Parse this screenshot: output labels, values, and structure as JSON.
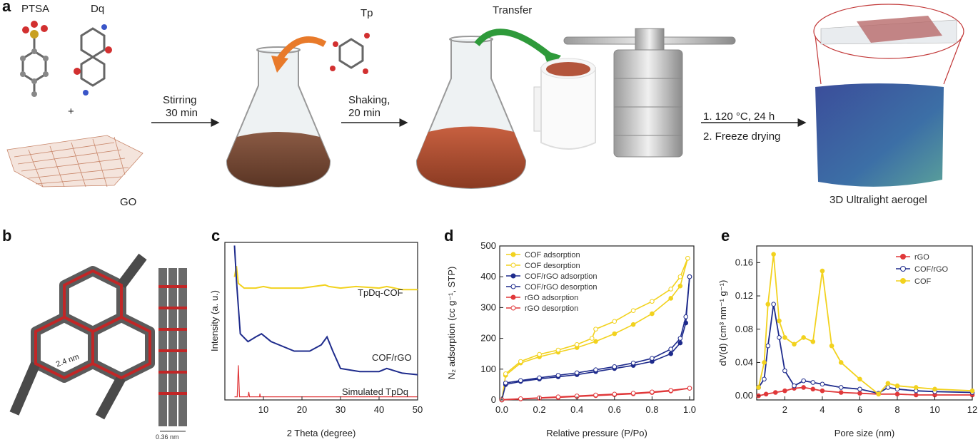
{
  "panel_a": {
    "label": "a",
    "ptsa": "PTSA",
    "dq": "Dq",
    "plus": "+",
    "go": "GO",
    "tp": "Tp",
    "transfer": "Transfer",
    "step1": [
      "Stirring",
      "30 min"
    ],
    "step2": [
      "Shaking,",
      "20 min"
    ],
    "step3": [
      "1. 120 °C, 24 h",
      "2. Freeze drying"
    ],
    "aerogel": "3D Ultralight aerogel"
  },
  "panel_b": {
    "label": "b",
    "pore": "2.4 nm",
    "spacing": "0.36 nm"
  },
  "colors": {
    "yellow": "#f2d21e",
    "navy": "#1e2b8c",
    "red": "#e0383a",
    "orange": "#e87a2a",
    "green": "#2e9a3a"
  },
  "chart_data": [
    {
      "label": "c",
      "type": "line",
      "xlabel": "2 Theta (degree)",
      "ylabel": "Intensity (a. u.)",
      "xlim": [
        0,
        50
      ],
      "xticks": [
        "10",
        "20",
        "30",
        "40",
        "50"
      ],
      "series": [
        {
          "name": "TpDq-COF",
          "x": [
            2.5,
            3,
            3.5,
            5,
            8,
            10,
            12,
            20,
            26,
            27,
            30,
            34,
            40,
            42,
            46,
            50
          ],
          "y": [
            0.78,
            0.85,
            0.74,
            0.71,
            0.71,
            0.72,
            0.71,
            0.71,
            0.73,
            0.72,
            0.71,
            0.72,
            0.71,
            0.72,
            0.7,
            0.7
          ]
        },
        {
          "name": "COF/rGO",
          "x": [
            2.5,
            3,
            4,
            6,
            8,
            9.5,
            12,
            18,
            22,
            25,
            26.5,
            28,
            30,
            35,
            40,
            42,
            46,
            50
          ],
          "y": [
            0.98,
            0.76,
            0.42,
            0.37,
            0.4,
            0.42,
            0.37,
            0.31,
            0.31,
            0.35,
            0.4,
            0.31,
            0.2,
            0.18,
            0.18,
            0.2,
            0.17,
            0.16
          ]
        },
        {
          "name": "Simulated TpDq",
          "x": [
            2.5,
            3.2,
            3.5,
            3.8,
            6,
            6.2,
            6.4,
            9,
            9.1,
            9.2,
            26,
            50
          ],
          "y": [
            0.02,
            0.02,
            0.22,
            0.02,
            0.02,
            0.05,
            0.02,
            0.02,
            0.04,
            0.02,
            0.02,
            0.02
          ]
        }
      ]
    },
    {
      "label": "d",
      "type": "line",
      "xlabel": "Relative pressure (P/Po)",
      "ylabel": "N₂ adsorption (cc g⁻¹, STP)",
      "xlim": [
        0,
        1
      ],
      "ylim": [
        0,
        500
      ],
      "xticks": [
        "0.0",
        "0.2",
        "0.4",
        "0.6",
        "0.8",
        "1.0"
      ],
      "yticks": [
        "0",
        "100",
        "200",
        "300",
        "400",
        "500"
      ],
      "series": [
        {
          "name": "COF adsorption",
          "x": [
            0,
            0.02,
            0.1,
            0.2,
            0.3,
            0.4,
            0.5,
            0.6,
            0.7,
            0.8,
            0.9,
            0.95,
            0.99
          ],
          "y": [
            0,
            80,
            120,
            140,
            155,
            170,
            190,
            215,
            245,
            280,
            330,
            370,
            460
          ]
        },
        {
          "name": "COF desorption",
          "x": [
            0.99,
            0.95,
            0.9,
            0.8,
            0.7,
            0.6,
            0.5,
            0.48,
            0.4,
            0.3,
            0.2,
            0.1,
            0.02
          ],
          "y": [
            460,
            400,
            360,
            320,
            290,
            255,
            230,
            200,
            180,
            162,
            148,
            125,
            85
          ]
        },
        {
          "name": "COF/rGO adsorption",
          "x": [
            0,
            0.02,
            0.1,
            0.2,
            0.3,
            0.4,
            0.5,
            0.6,
            0.7,
            0.8,
            0.9,
            0.95,
            0.98,
            1.0
          ],
          "y": [
            0,
            50,
            60,
            68,
            75,
            82,
            92,
            102,
            112,
            125,
            150,
            185,
            250,
            400
          ]
        },
        {
          "name": "COF/rGO desorption",
          "x": [
            1.0,
            0.98,
            0.95,
            0.9,
            0.8,
            0.7,
            0.6,
            0.5,
            0.4,
            0.3,
            0.2,
            0.1,
            0.02
          ],
          "y": [
            400,
            270,
            200,
            165,
            135,
            120,
            108,
            98,
            88,
            80,
            72,
            63,
            55
          ]
        },
        {
          "name": "rGO adsorption",
          "x": [
            0,
            0.1,
            0.2,
            0.3,
            0.4,
            0.5,
            0.6,
            0.7,
            0.8,
            0.9,
            1.0
          ],
          "y": [
            0,
            3,
            6,
            8,
            11,
            14,
            17,
            20,
            24,
            29,
            38
          ]
        },
        {
          "name": "rGO desorption",
          "x": [
            1.0,
            0.9,
            0.8,
            0.7,
            0.6,
            0.5,
            0.4,
            0.3,
            0.2,
            0.1,
            0.0
          ],
          "y": [
            38,
            31,
            26,
            22,
            19,
            16,
            13,
            10,
            7,
            4,
            1
          ]
        }
      ]
    },
    {
      "label": "e",
      "type": "line",
      "xlabel": "Pore size (nm)",
      "ylabel": "dV(d) (cm³ nm⁻¹ g⁻¹)",
      "xlim": [
        0.5,
        12
      ],
      "ylim": [
        -0.005,
        0.18
      ],
      "xticks": [
        "2",
        "4",
        "6",
        "8",
        "10",
        "12"
      ],
      "yticks": [
        "0.00",
        "0.04",
        "0.08",
        "0.12",
        "0.16"
      ],
      "series": [
        {
          "name": "rGO",
          "x": [
            0.6,
            1,
            1.5,
            2,
            2.5,
            3,
            3.5,
            4,
            5,
            6,
            7,
            8,
            9,
            10,
            12
          ],
          "y": [
            0,
            0.002,
            0.004,
            0.006,
            0.009,
            0.01,
            0.008,
            0.006,
            0.004,
            0.003,
            0.002,
            0.002,
            0.001,
            0.001,
            0.001
          ]
        },
        {
          "name": "COF/rGO",
          "x": [
            0.6,
            0.9,
            1.1,
            1.4,
            1.7,
            2.0,
            2.5,
            3.0,
            3.5,
            4.0,
            5.0,
            6.0,
            7.0,
            7.5,
            8.0,
            9.0,
            10.0,
            12.0
          ],
          "y": [
            0.01,
            0.02,
            0.06,
            0.11,
            0.07,
            0.03,
            0.012,
            0.018,
            0.016,
            0.014,
            0.01,
            0.008,
            0.003,
            0.01,
            0.008,
            0.006,
            0.005,
            0.004
          ]
        },
        {
          "name": "COF",
          "x": [
            0.6,
            0.9,
            1.1,
            1.4,
            1.7,
            2.0,
            2.5,
            3.0,
            3.5,
            4.0,
            4.5,
            5.0,
            6.0,
            7.0,
            7.5,
            8.0,
            9.0,
            10.0,
            12.0
          ],
          "y": [
            0.01,
            0.04,
            0.11,
            0.17,
            0.09,
            0.07,
            0.062,
            0.07,
            0.065,
            0.15,
            0.06,
            0.04,
            0.02,
            0.002,
            0.015,
            0.012,
            0.01,
            0.008,
            0.006
          ]
        }
      ]
    }
  ]
}
